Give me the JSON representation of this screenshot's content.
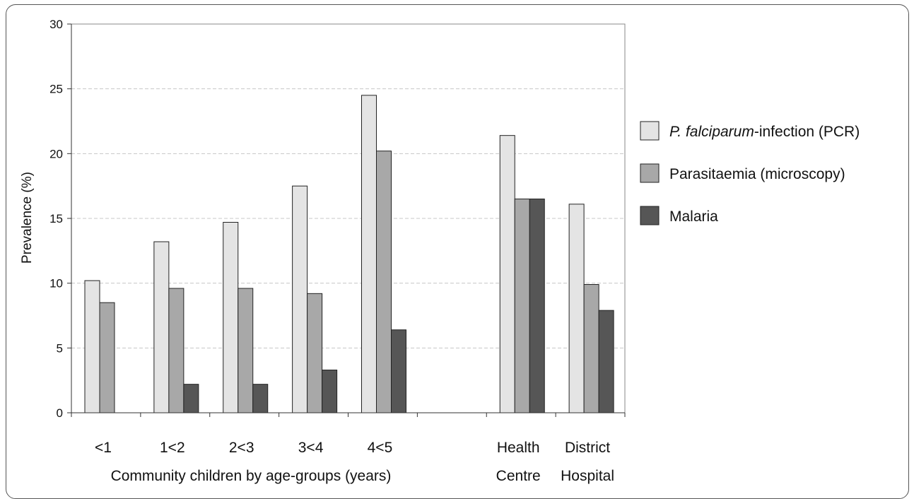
{
  "chart_data": {
    "type": "bar",
    "title": "",
    "ylabel": "Prevalence (%)",
    "xlabel": "Community children by age-groups (years)",
    "ylim": [
      0,
      30
    ],
    "yticks": [
      0,
      5,
      10,
      15,
      20,
      25,
      30
    ],
    "grid": true,
    "legend_position": "right",
    "categories": [
      {
        "line1": "<1",
        "line2": ""
      },
      {
        "line1": "1<2",
        "line2": ""
      },
      {
        "line1": "2<3",
        "line2": ""
      },
      {
        "line1": "3<4",
        "line2": ""
      },
      {
        "line1": "4<5",
        "line2": ""
      },
      {
        "line1": "",
        "line2": ""
      },
      {
        "line1": "Health",
        "line2": "Centre"
      },
      {
        "line1": "District",
        "line2": "Hospital"
      }
    ],
    "series": [
      {
        "name_italic": "P. falciparum",
        "name_rest": "-infection (PCR)",
        "color": "#e4e4e4",
        "values": [
          10.2,
          13.2,
          14.7,
          17.5,
          24.5,
          null,
          21.4,
          16.1
        ]
      },
      {
        "name_italic": "",
        "name_rest": "Parasitaemia (microscopy)",
        "color": "#a8a8a8",
        "values": [
          8.5,
          9.6,
          9.6,
          9.2,
          20.2,
          null,
          16.5,
          9.9
        ]
      },
      {
        "name_italic": "",
        "name_rest": "Malaria",
        "color": "#565656",
        "values": [
          0,
          2.2,
          2.2,
          3.3,
          6.4,
          null,
          16.5,
          7.9
        ]
      }
    ]
  }
}
